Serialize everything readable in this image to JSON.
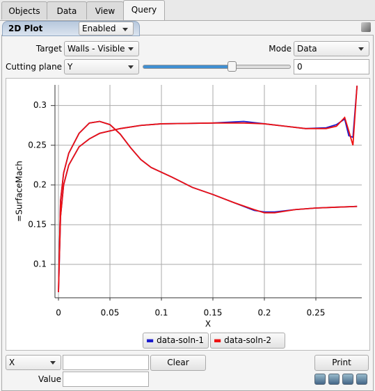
{
  "tabs": [
    "Objects",
    "Data",
    "View",
    "Query"
  ],
  "panel": {
    "title": "2D Plot",
    "state": "Enabled"
  },
  "controls": {
    "target_label": "Target",
    "target": "Walls - Visible",
    "mode_label": "Mode",
    "mode": "Data",
    "cutting_label": "Cutting plane",
    "cutting": "Y",
    "cutting_value": "0"
  },
  "chart_data": {
    "type": "line",
    "x_label": "X",
    "y_label": "=SurfaceMach",
    "xlim": [
      -0.0034,
      0.2946
    ],
    "xticks": [
      0,
      0.05,
      0.1,
      0.15,
      0.2,
      0.25
    ],
    "ylim": [
      0.058,
      0.326
    ],
    "yticks": [
      0.1,
      0.15,
      0.2,
      0.25,
      0.3
    ],
    "grid": true,
    "series": [
      {
        "name": "data-soln-1",
        "color": "#1a1acc",
        "x": [
          0.29,
          0.27,
          0.25,
          0.23,
          0.21,
          0.2,
          0.19,
          0.17,
          0.15,
          0.13,
          0.11,
          0.09,
          0.08,
          0.07,
          0.06,
          0.05,
          0.04,
          0.03,
          0.02,
          0.01,
          0.005,
          0.002,
          0,
          0.002,
          0.005,
          0.01,
          0.02,
          0.03,
          0.04,
          0.06,
          0.08,
          0.1,
          0.15,
          0.18,
          0.2,
          0.22,
          0.24,
          0.26,
          0.27,
          0.278,
          0.282,
          0.286,
          0.29
        ],
        "values": [
          0.173,
          0.172,
          0.171,
          0.169,
          0.166,
          0.166,
          0.168,
          0.178,
          0.188,
          0.197,
          0.21,
          0.222,
          0.232,
          0.247,
          0.264,
          0.276,
          0.28,
          0.278,
          0.265,
          0.24,
          0.215,
          0.18,
          0.065,
          0.16,
          0.2,
          0.225,
          0.248,
          0.258,
          0.265,
          0.271,
          0.275,
          0.277,
          0.278,
          0.28,
          0.277,
          0.274,
          0.271,
          0.272,
          0.276,
          0.283,
          0.262,
          0.26,
          0.325
        ]
      },
      {
        "name": "data-soln-2",
        "color": "#ee1111",
        "x": [
          0.29,
          0.27,
          0.25,
          0.23,
          0.21,
          0.2,
          0.19,
          0.17,
          0.15,
          0.13,
          0.11,
          0.09,
          0.08,
          0.07,
          0.06,
          0.05,
          0.04,
          0.03,
          0.02,
          0.01,
          0.005,
          0.002,
          0,
          0.002,
          0.005,
          0.01,
          0.02,
          0.03,
          0.04,
          0.06,
          0.08,
          0.1,
          0.15,
          0.18,
          0.2,
          0.22,
          0.24,
          0.26,
          0.27,
          0.278,
          0.282,
          0.286,
          0.29
        ],
        "values": [
          0.173,
          0.172,
          0.171,
          0.169,
          0.165,
          0.165,
          0.169,
          0.178,
          0.188,
          0.197,
          0.21,
          0.222,
          0.232,
          0.247,
          0.264,
          0.276,
          0.28,
          0.278,
          0.265,
          0.24,
          0.215,
          0.18,
          0.065,
          0.16,
          0.2,
          0.225,
          0.248,
          0.258,
          0.265,
          0.271,
          0.275,
          0.277,
          0.278,
          0.278,
          0.277,
          0.274,
          0.271,
          0.271,
          0.274,
          0.285,
          0.268,
          0.25,
          0.325
        ]
      }
    ]
  },
  "bottom": {
    "axis": "X",
    "clear": "Clear",
    "print": "Print",
    "value_label": "Value"
  }
}
